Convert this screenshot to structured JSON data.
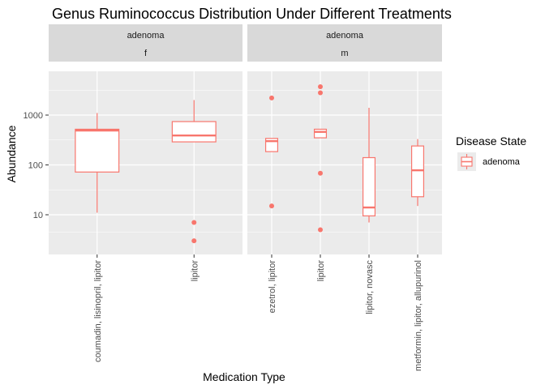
{
  "chart_data": {
    "type": "boxplot",
    "title": "Genus Ruminococcus Distribution Under Different Treatments",
    "xlabel": "Medication Type",
    "ylabel": "Abundance",
    "y_scale": "log10",
    "ylim": [
      2,
      5000
    ],
    "y_ticks": [
      10,
      100,
      1000
    ],
    "y_tick_labels": [
      "10",
      "100",
      "1000"
    ],
    "grid": true,
    "colors": {
      "box": "#f8766d",
      "panel": "#ebebeb",
      "strip": "#d9d9d9",
      "grid": "#ffffff"
    },
    "legend": {
      "title": "Disease State",
      "entries": [
        "adenoma"
      ],
      "position": "right"
    },
    "facets": [
      {
        "strip": [
          "adenoma",
          "f"
        ],
        "categories": [
          "coumadin, lisinopril, lipitor",
          "lipitor"
        ],
        "boxes": [
          {
            "category": "coumadin, lisinopril, lipitor",
            "whisker_low": 11,
            "q1": 72,
            "median": 490,
            "q3": 520,
            "whisker_high": 1100,
            "outliers": []
          },
          {
            "category": "lipitor",
            "whisker_low": 290,
            "q1": 290,
            "median": 390,
            "q3": 740,
            "whisker_high": 2000,
            "outliers": [
              7,
              3
            ]
          }
        ]
      },
      {
        "strip": [
          "adenoma",
          "m"
        ],
        "categories": [
          "ezetrol, lipitor",
          "lipitor",
          "lipitor, novasc",
          "metformin, lipitor, allupurinol"
        ],
        "boxes": [
          {
            "category": "ezetrol, lipitor",
            "whisker_low": 185,
            "q1": 185,
            "median": 300,
            "q3": 340,
            "whisker_high": 340,
            "outliers": [
              2200,
              15
            ]
          },
          {
            "category": "lipitor",
            "whisker_low": 350,
            "q1": 350,
            "median": 460,
            "q3": 520,
            "whisker_high": 520,
            "outliers": [
              3700,
              2800,
              68,
              5
            ]
          },
          {
            "category": "lipitor, novasc",
            "whisker_low": 7,
            "q1": 9.5,
            "median": 14,
            "q3": 140,
            "whisker_high": 1400,
            "outliers": []
          },
          {
            "category": "metformin, lipitor, allupurinol",
            "whisker_low": 15,
            "q1": 23,
            "median": 78,
            "q3": 240,
            "whisker_high": 330,
            "outliers": []
          }
        ]
      }
    ]
  }
}
